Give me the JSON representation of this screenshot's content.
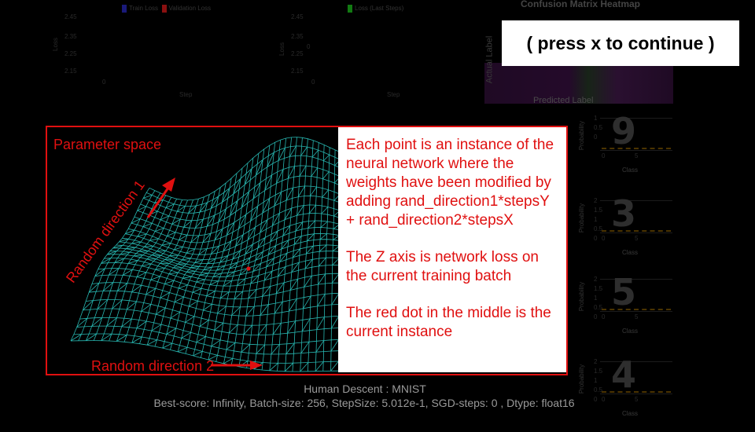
{
  "loss_chart": {
    "legend": [
      {
        "label": "Train Loss",
        "color": "#1a1a6a"
      },
      {
        "label": "Validation Loss",
        "color": "#7a1010"
      }
    ],
    "yticks": [
      "2.45",
      "2.35",
      "2.25",
      "2.15",
      "0"
    ],
    "ylabel": "Loss",
    "xlabel": "Step"
  },
  "steps_chart": {
    "legend": [
      {
        "label": "Loss (Last Steps)",
        "color": "#126a12"
      }
    ],
    "yticks": [
      "2.45",
      "2.35",
      "2.25",
      "2.15",
      "0"
    ],
    "ylabel": "Loss",
    "xlabel": "Step",
    "zero_label": "0"
  },
  "confusion": {
    "title": "Confusion Matrix Heatmap",
    "ylabel": "Actual Label",
    "xlabel": "Predicted Label"
  },
  "press_prompt": "( press x to continue )",
  "parameter_panel": {
    "title": "Parameter space",
    "axis1_label": "Random direction 1",
    "axis2_label": "Random direction 2",
    "mesh_color": "#2fd6cf",
    "dot_color": "#e01010",
    "frame_color": "#e01010"
  },
  "info": {
    "paragraphs": [
      "Each point is an instance of the neural network where the weights have been modified by adding rand_direction1*stepsY + rand_direction2*stepsX",
      "The Z axis is network loss on the current training batch",
      "The red dot in the middle is the current instance"
    ]
  },
  "footer": {
    "title": "Human Descent : MNIST",
    "stats": "Best-score: Infinity, Batch-size: 256, StepSize: 5.012e-1, SGD-steps: 0 , Dtype: float16"
  },
  "digit_panels": [
    {
      "digit": "9",
      "ylabel": "Probability",
      "xlabel": "Class",
      "ticks": [
        "1",
        "0.5",
        "0"
      ],
      "xticks": [
        "0",
        "5"
      ]
    },
    {
      "digit": "3",
      "ylabel": "Probability",
      "xlabel": "Class",
      "ticks": [
        "2",
        "1.5",
        "1",
        "0.5",
        "0"
      ],
      "xticks": [
        "0",
        "5"
      ]
    },
    {
      "digit": "5",
      "ylabel": "Probability",
      "xlabel": "Class",
      "ticks": [
        "2",
        "1.5",
        "1",
        "0.5",
        "0"
      ],
      "xticks": [
        "0",
        "5"
      ]
    },
    {
      "digit": "4",
      "ylabel": "Probability",
      "xlabel": "Class",
      "ticks": [
        "2",
        "1.5",
        "1",
        "0.5",
        "0"
      ],
      "xticks": [
        "0",
        "5"
      ]
    }
  ]
}
